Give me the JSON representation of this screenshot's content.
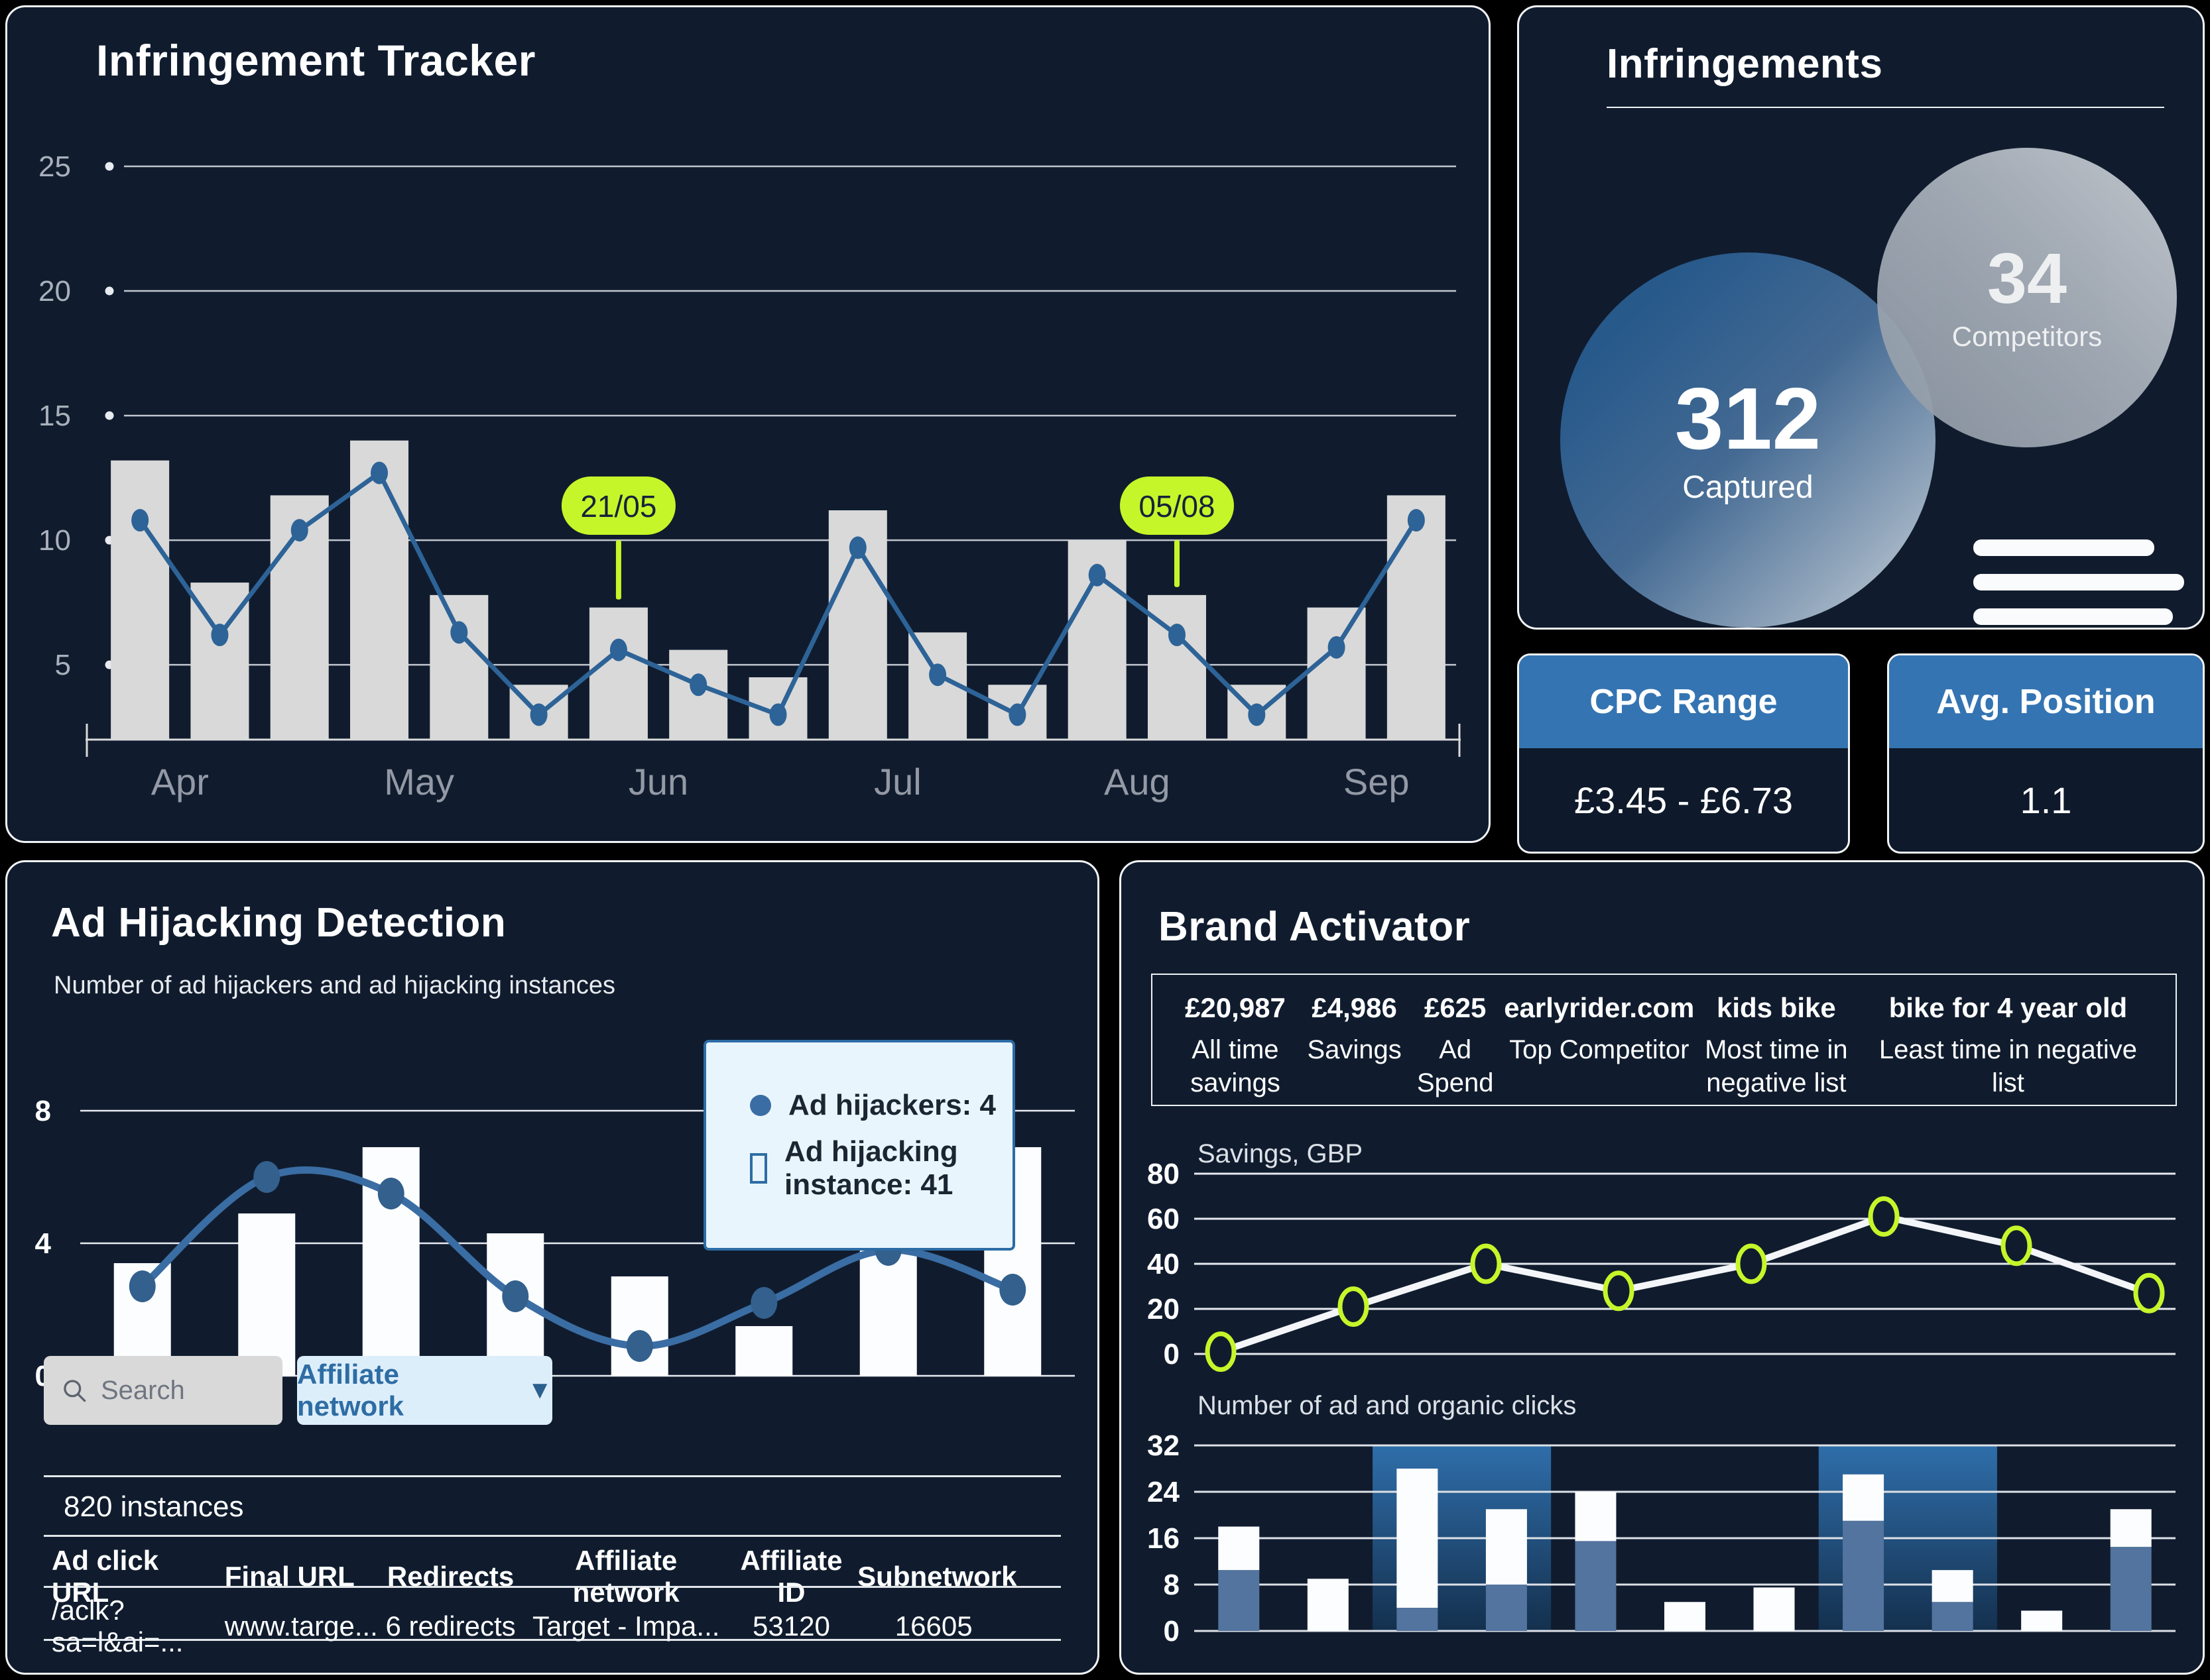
{
  "tracker": {
    "title": "Infringement Tracker",
    "y_ticks": [
      "25",
      "20",
      "15",
      "10",
      "5"
    ],
    "months": [
      "Apr",
      "May",
      "Jun",
      "Jul",
      "Aug",
      "Sep"
    ],
    "bars": [
      13.2,
      8.3,
      11.8,
      14,
      7.8,
      4.2,
      7.3,
      5.6,
      4.5,
      11.2,
      6.3,
      4.2,
      10,
      7.8,
      4.2,
      7.3,
      11.8
    ],
    "line": [
      10.8,
      6.2,
      10.4,
      12.7,
      6.3,
      3,
      5.6,
      4.2,
      3,
      9.7,
      4.6,
      3,
      8.6,
      6.2,
      3,
      5.7,
      10.8
    ],
    "callouts": [
      {
        "label": "21/05",
        "index": 6
      },
      {
        "label": "05/08",
        "index": 13
      }
    ],
    "accent_color": "#c5f62a",
    "bar_color": "#d9d9d9",
    "line_color": "#2d6397"
  },
  "infringements": {
    "title": "Infringements",
    "captured_value": "312",
    "captured_label": "Captured",
    "competitors_value": "34",
    "competitors_label": "Competitors"
  },
  "cpc": {
    "title": "CPC Range",
    "value": "£3.45 - £6.73"
  },
  "avg_position": {
    "title": "Avg. Position",
    "value": "1.1"
  },
  "ad_hijacking": {
    "title": "Ad Hijacking Detection",
    "subtitle": "Number of ad hijackers and ad hijacking instances",
    "y_ticks": [
      "8",
      "4",
      "0"
    ],
    "bars": [
      3.4,
      4.9,
      6.9,
      4.3,
      3.0,
      1.5,
      4.1,
      6.9
    ],
    "line": [
      2.7,
      6.0,
      5.5,
      2.4,
      0.9,
      2.2,
      3.8,
      2.6
    ],
    "tooltip": {
      "hijackers": "Ad hijackers: 4",
      "instances": "Ad hijacking instance: 41"
    },
    "search_placeholder": "Search",
    "filter_label": "Affiliate network",
    "instances_text": "820 instances",
    "table": {
      "headers": [
        "Ad click URL",
        "Final URL",
        "Redirects",
        "Affiliate network",
        "Affiliate ID",
        "Subnetwork"
      ],
      "rows": [
        [
          "/aclk?sa=l&ai=...",
          "www.targe...",
          "6 redirects",
          "Target - Impa...",
          "53120",
          "16605"
        ]
      ]
    }
  },
  "brand": {
    "title": "Brand Activator",
    "stats": [
      {
        "value": "£20,987",
        "label": "All time savings"
      },
      {
        "value": "£4,986",
        "label": "Savings"
      },
      {
        "value": "£625",
        "label": "Ad Spend"
      },
      {
        "value": "earlyrider.com",
        "label": "Top Competitor"
      },
      {
        "value": "kids bike",
        "label": "Most time in negative list"
      },
      {
        "value": "bike for 4 year old",
        "label": "Least time in negative list"
      }
    ],
    "savings": {
      "label": "Savings, GBP",
      "y_ticks": [
        "80",
        "60",
        "40",
        "20",
        "0"
      ],
      "values": [
        1,
        21,
        40,
        28,
        40,
        61,
        48,
        27
      ],
      "point_color": "#c5f62a"
    },
    "clicks": {
      "label": "Number of ad and organic clicks",
      "y_ticks": [
        "32",
        "24",
        "16",
        "8",
        "0"
      ],
      "ad": [
        10.5,
        0,
        4,
        8,
        15.5,
        0,
        0,
        19,
        5,
        0,
        14.5
      ],
      "organic": [
        7.5,
        9,
        24,
        13,
        8.5,
        5,
        7.5,
        8,
        5.5,
        3.5,
        6.5
      ],
      "bands": [
        [
          2,
          3
        ],
        [
          7,
          8
        ]
      ],
      "ad_color": "#52749e",
      "organic_color": "#fcfdfe"
    }
  }
}
